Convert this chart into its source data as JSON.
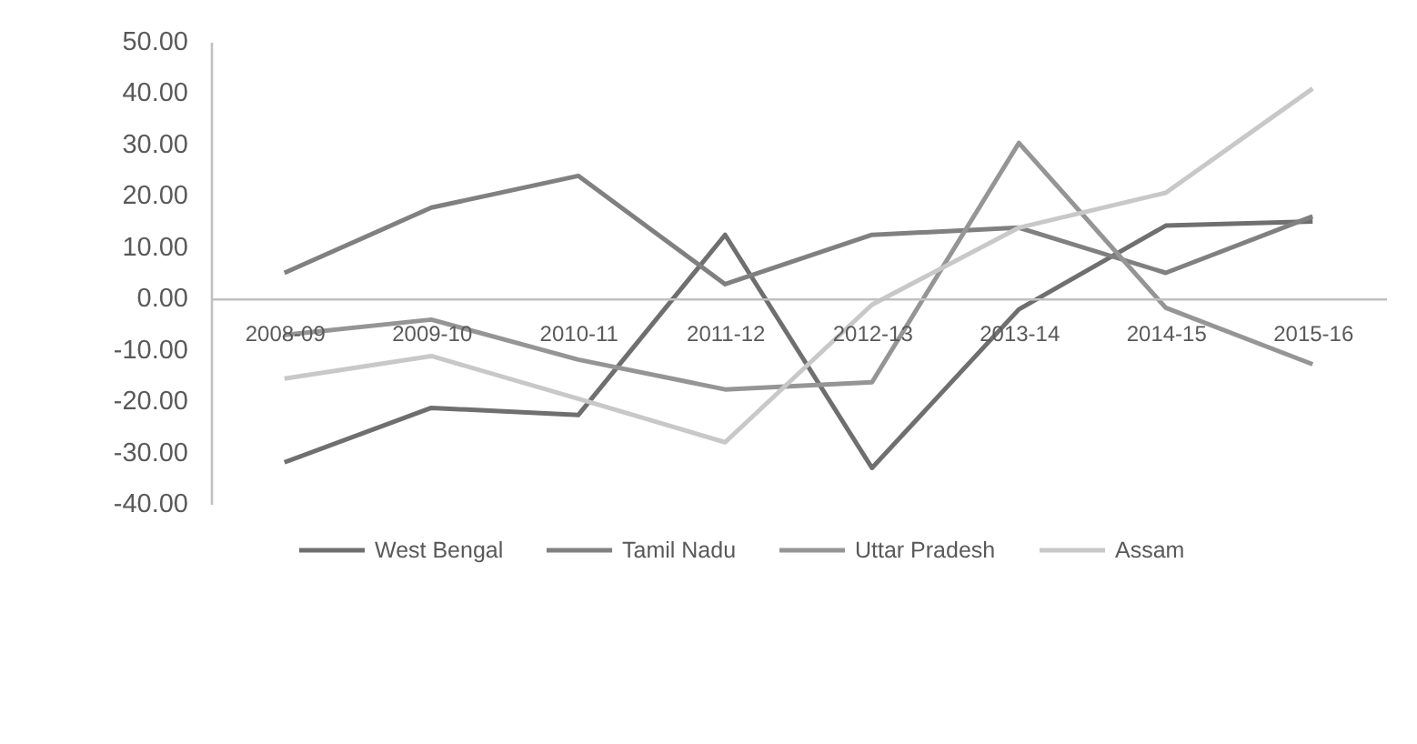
{
  "chart_data": {
    "type": "line",
    "categories": [
      "2008-09",
      "2009-10",
      "2010-11",
      "2011-12",
      "2012-13",
      "2013-14",
      "2014-15",
      "2015-16"
    ],
    "series": [
      {
        "name": "West Bengal",
        "color": "#6f6f6f",
        "values": [
          -31.9,
          -21.3,
          -22.7,
          12.4,
          -33.0,
          -2.1,
          14.2,
          15.0
        ]
      },
      {
        "name": "Tamil Nadu",
        "color": "#808080",
        "values": [
          5.0,
          17.7,
          23.9,
          2.8,
          12.4,
          13.8,
          5.0,
          16.0
        ]
      },
      {
        "name": "Uttar Pradesh",
        "color": "#959595",
        "values": [
          -7.1,
          -4.1,
          -11.9,
          -17.7,
          -16.3,
          30.3,
          -1.8,
          -12.8
        ]
      },
      {
        "name": "Assam",
        "color": "#c8c8c8",
        "values": [
          -15.6,
          -11.2,
          -19.5,
          -28.0,
          -1.2,
          13.8,
          20.6,
          40.9
        ]
      }
    ],
    "ylim": [
      -40,
      50
    ],
    "yticks": [
      {
        "value": -40,
        "label": "-40.00"
      },
      {
        "value": -30,
        "label": "-30.00"
      },
      {
        "value": -20,
        "label": "-20.00"
      },
      {
        "value": -10,
        "label": "-10.00"
      },
      {
        "value": 0,
        "label": "0.00"
      },
      {
        "value": 10,
        "label": "10.00"
      },
      {
        "value": 20,
        "label": "20.00"
      },
      {
        "value": 30,
        "label": "30.00"
      },
      {
        "value": 40,
        "label": "40.00"
      },
      {
        "value": 50,
        "label": "50.00"
      }
    ],
    "legend": "bottom",
    "grid": false
  }
}
